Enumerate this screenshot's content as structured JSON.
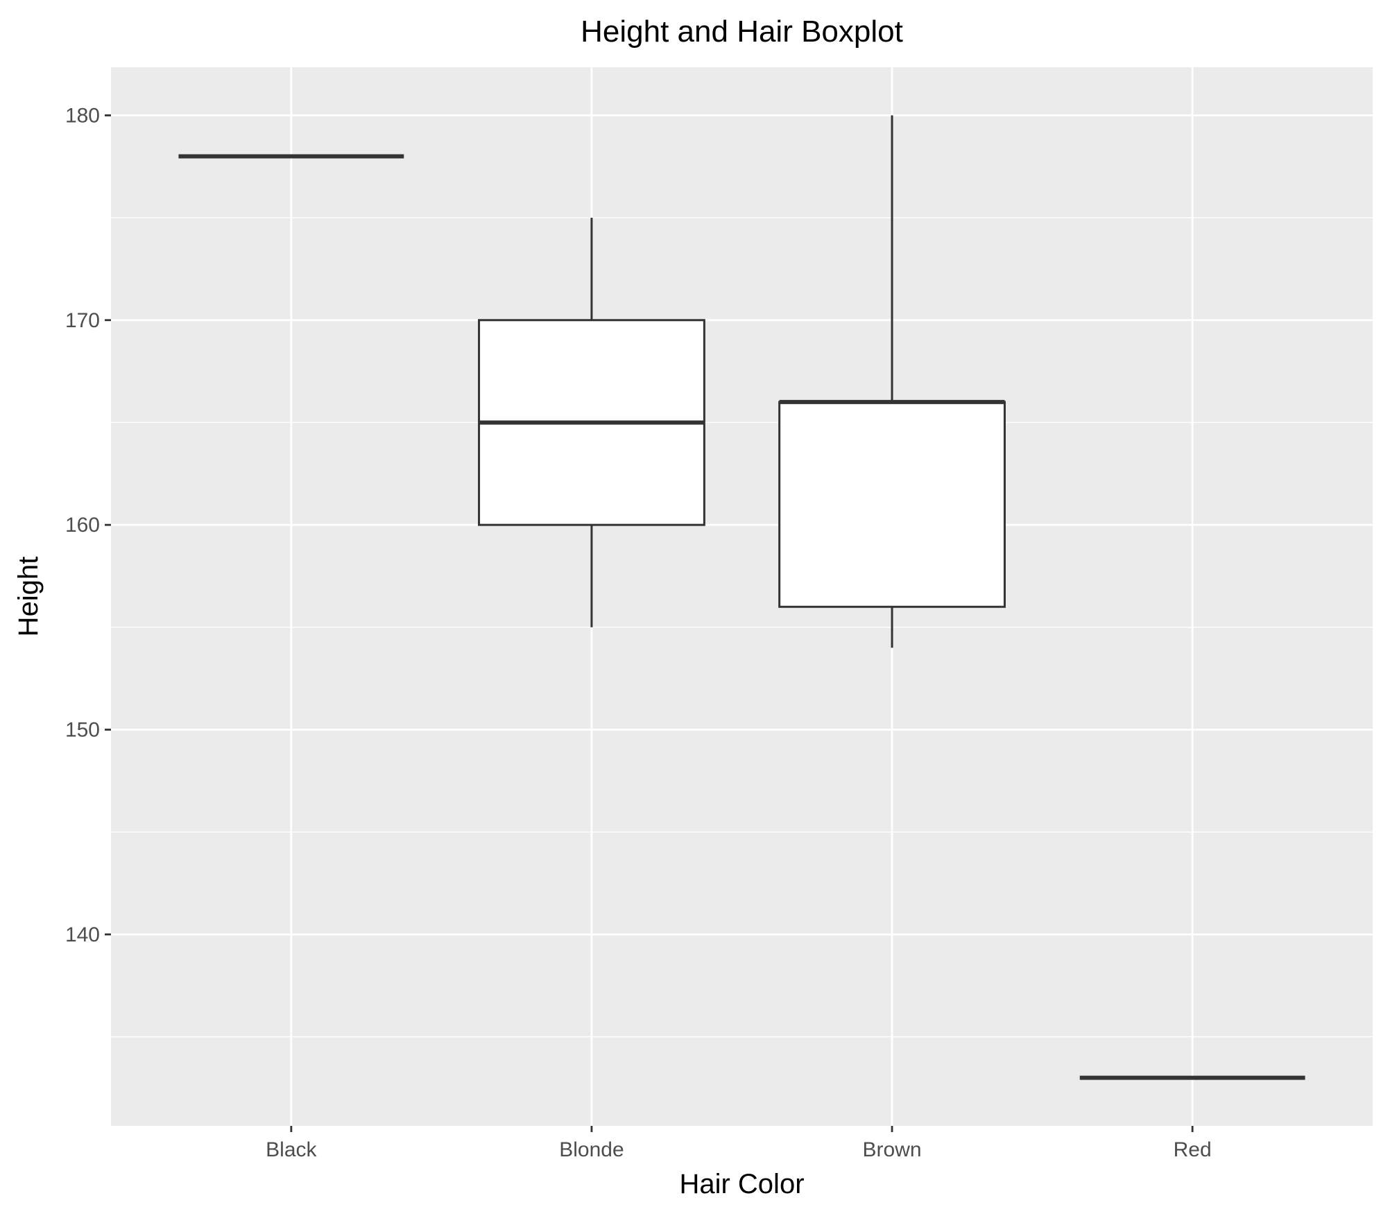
{
  "chart_data": {
    "type": "boxplot",
    "title": "Height and Hair Boxplot",
    "xlabel": "Hair Color",
    "ylabel": "Height",
    "categories": [
      "Black",
      "Blonde",
      "Brown",
      "Red"
    ],
    "boxes": [
      {
        "category": "Black",
        "min": 178,
        "q1": 178,
        "median": 178,
        "q3": 178,
        "max": 178
      },
      {
        "category": "Blonde",
        "min": 155,
        "q1": 160,
        "median": 165,
        "q3": 170,
        "max": 175
      },
      {
        "category": "Brown",
        "min": 154,
        "q1": 156,
        "median": 166,
        "q3": 166,
        "max": 180
      },
      {
        "category": "Red",
        "min": 133,
        "q1": 133,
        "median": 133,
        "q3": 133,
        "max": 133
      }
    ],
    "yticks": [
      140,
      150,
      160,
      170,
      180
    ],
    "yminor": [
      135,
      145,
      155,
      165,
      175
    ],
    "ylim": [
      130.65,
      182.35
    ],
    "grid": true,
    "legend": "none",
    "colors": {
      "panel_background": "#ebebeb",
      "grid_line": "#ffffff",
      "box_fill": "#ffffff",
      "box_stroke": "#333333",
      "tick_mark": "#333333",
      "tick_label": "#4d4d4d"
    }
  }
}
